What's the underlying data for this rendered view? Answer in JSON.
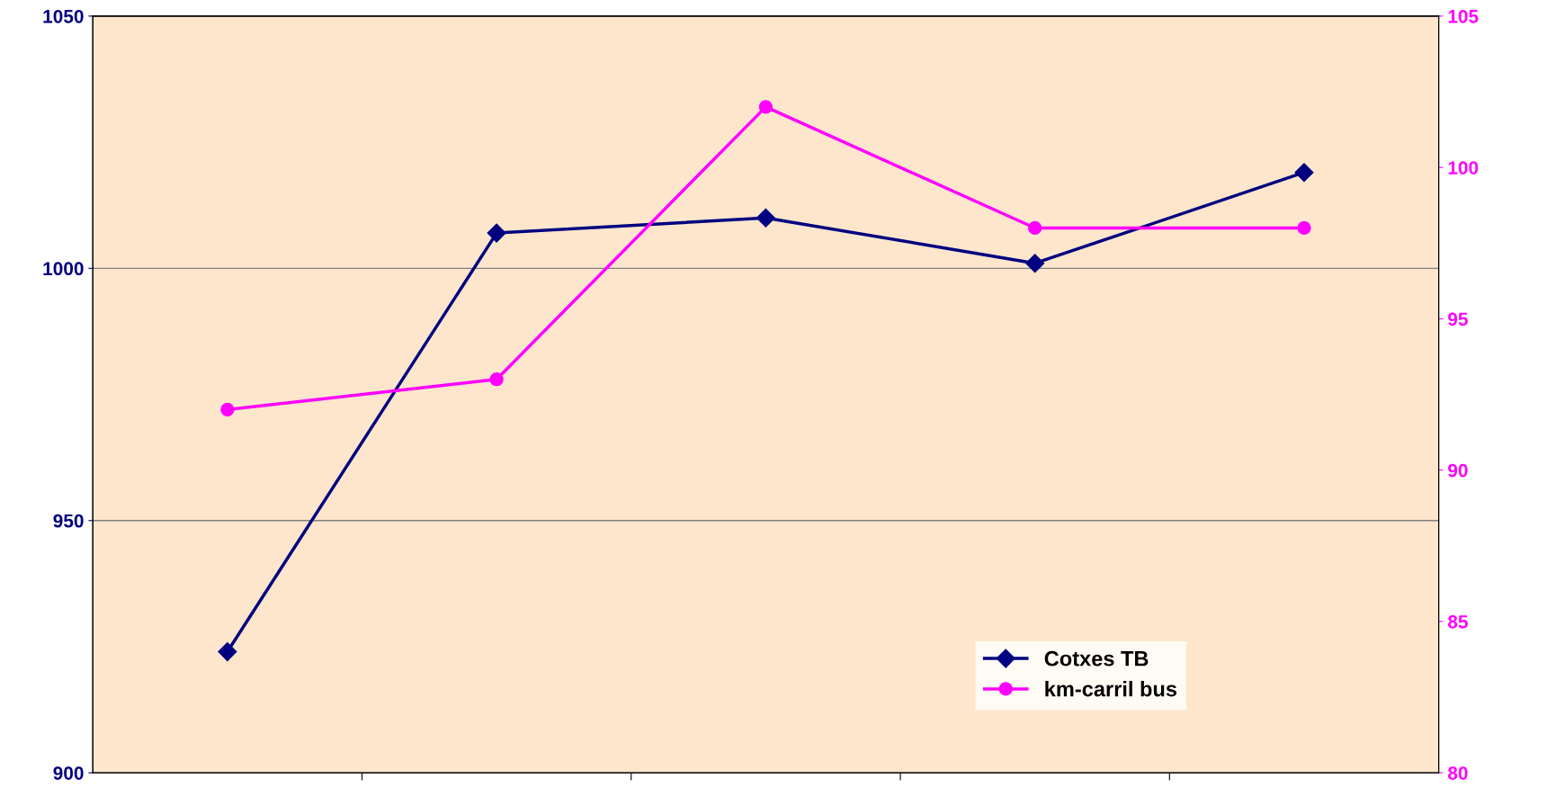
{
  "chart_data": {
    "type": "line",
    "categories": [
      null,
      null,
      null,
      null,
      null
    ],
    "series": [
      {
        "name": "Cotxes TB",
        "color": "#000080",
        "marker": "diamond",
        "values": [
          924,
          1007,
          1010,
          1001,
          1019
        ]
      },
      {
        "name": "km-carril bus",
        "color": "#ff00ff",
        "marker": "circle",
        "axis": "y2",
        "values": [
          92,
          93,
          102,
          98,
          98
        ]
      }
    ],
    "ylim": [
      900,
      1050
    ],
    "yticks": [
      900,
      950,
      1000,
      1050
    ],
    "y2lim": [
      80,
      105
    ],
    "y2ticks": [
      80,
      85,
      90,
      95,
      100,
      105
    ],
    "grid": "y",
    "legend": "bottom right",
    "line_style": "solid"
  }
}
